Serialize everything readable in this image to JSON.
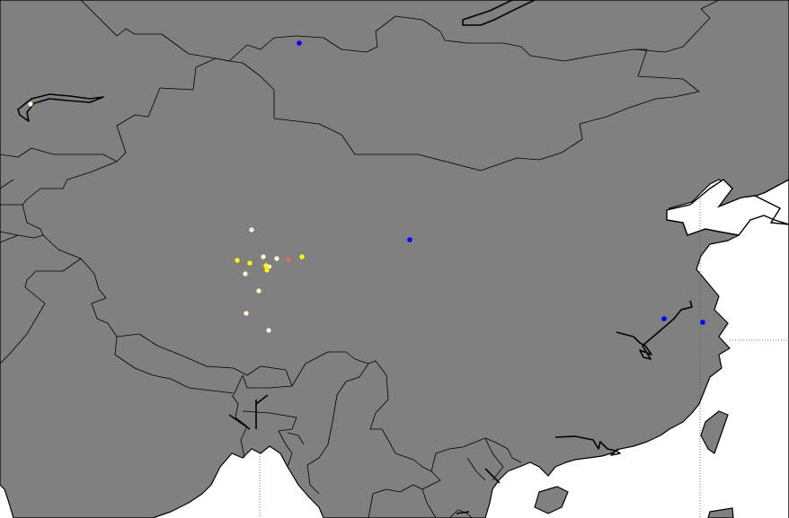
{
  "map": {
    "colors": {
      "land": "#808080",
      "water": "#ffffff",
      "borders": "#000000"
    },
    "markers": [
      {
        "id": "m1",
        "color": "#0000ff"
      },
      {
        "id": "m2",
        "color": "#0000ff"
      },
      {
        "id": "m3",
        "color": "#0000ff"
      },
      {
        "id": "m4",
        "color": "#0000ff"
      },
      {
        "id": "m5",
        "color": "#fffacd"
      },
      {
        "id": "m6",
        "color": "#fffacd"
      },
      {
        "id": "m7",
        "color": "#ffff00"
      },
      {
        "id": "m8",
        "color": "#ffff00"
      },
      {
        "id": "m9",
        "color": "#fffacd"
      },
      {
        "id": "m10",
        "color": "#fffacd"
      },
      {
        "id": "m11",
        "color": "#ffff00"
      },
      {
        "id": "m12",
        "color": "#ffff00"
      },
      {
        "id": "m13",
        "color": "#fffacd"
      },
      {
        "id": "m14",
        "color": "#ff6666"
      },
      {
        "id": "m15",
        "color": "#ffff00"
      },
      {
        "id": "m16",
        "color": "#fffacd"
      },
      {
        "id": "m17",
        "color": "#fffacd"
      },
      {
        "id": "m18",
        "color": "#fffacd"
      },
      {
        "id": "m19",
        "color": "#fffacd"
      }
    ]
  }
}
